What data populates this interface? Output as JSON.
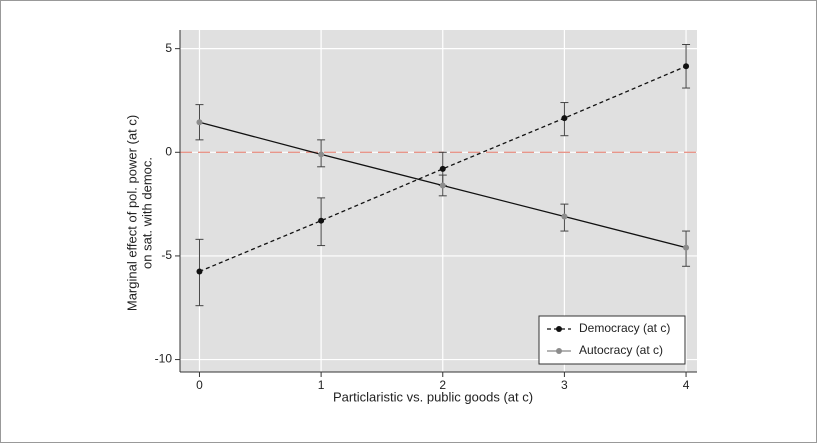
{
  "chart_data": {
    "type": "line",
    "xlabel": "Particlaristic vs. public goods (at c)",
    "ylabel": [
      "Marginal effect of pol. power (at c)",
      "on sat. with democ."
    ],
    "x": [
      0,
      1,
      2,
      3,
      4
    ],
    "series": [
      {
        "name": "Democracy (at c)",
        "color": "#111111",
        "marker_color": "#111111",
        "dash": true,
        "values": [
          -5.75,
          -3.3,
          -0.8,
          1.65,
          4.15
        ],
        "lower": [
          -7.4,
          -4.5,
          -1.6,
          0.8,
          3.1
        ],
        "upper": [
          -4.2,
          -2.2,
          0,
          2.4,
          5.2
        ]
      },
      {
        "name": "Autocracy (at c)",
        "color": "#111111",
        "marker_color": "#8c8c8c",
        "dash": false,
        "values": [
          1.45,
          -0.1,
          -1.6,
          -3.1,
          -4.6
        ],
        "lower": [
          0.6,
          -0.7,
          -2.1,
          -3.8,
          -5.5
        ],
        "upper": [
          2.3,
          0.6,
          -1.1,
          -2.5,
          -3.8
        ]
      }
    ],
    "hline": 0,
    "xlim": [
      -0.16,
      4.09
    ],
    "ylim": [
      -10.6,
      5.9
    ],
    "xticks": [
      0,
      1,
      2,
      3,
      4
    ],
    "yticks": [
      5,
      0,
      -5,
      -10
    ],
    "grid": true,
    "legend": "lower right"
  }
}
